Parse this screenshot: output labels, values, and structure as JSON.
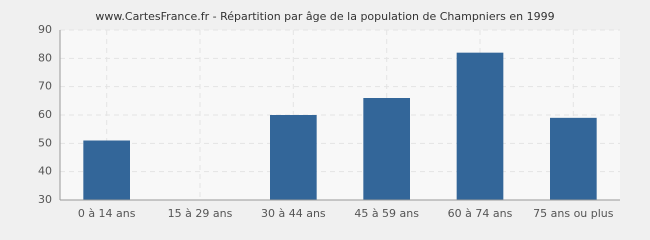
{
  "chart_data": {
    "type": "bar",
    "title": "www.CartesFrance.fr - Répartition par âge de la population de Champniers en 1999",
    "categories": [
      "0 à 14 ans",
      "15 à 29 ans",
      "30 à 44 ans",
      "45 à 59 ans",
      "60 à 74 ans",
      "75 ans ou plus"
    ],
    "values": [
      51,
      30,
      60,
      66,
      82,
      59
    ],
    "color": "#336699",
    "ylim": [
      30,
      90
    ],
    "yticks": [
      30,
      40,
      50,
      60,
      70,
      80,
      90
    ],
    "grid": true
  }
}
